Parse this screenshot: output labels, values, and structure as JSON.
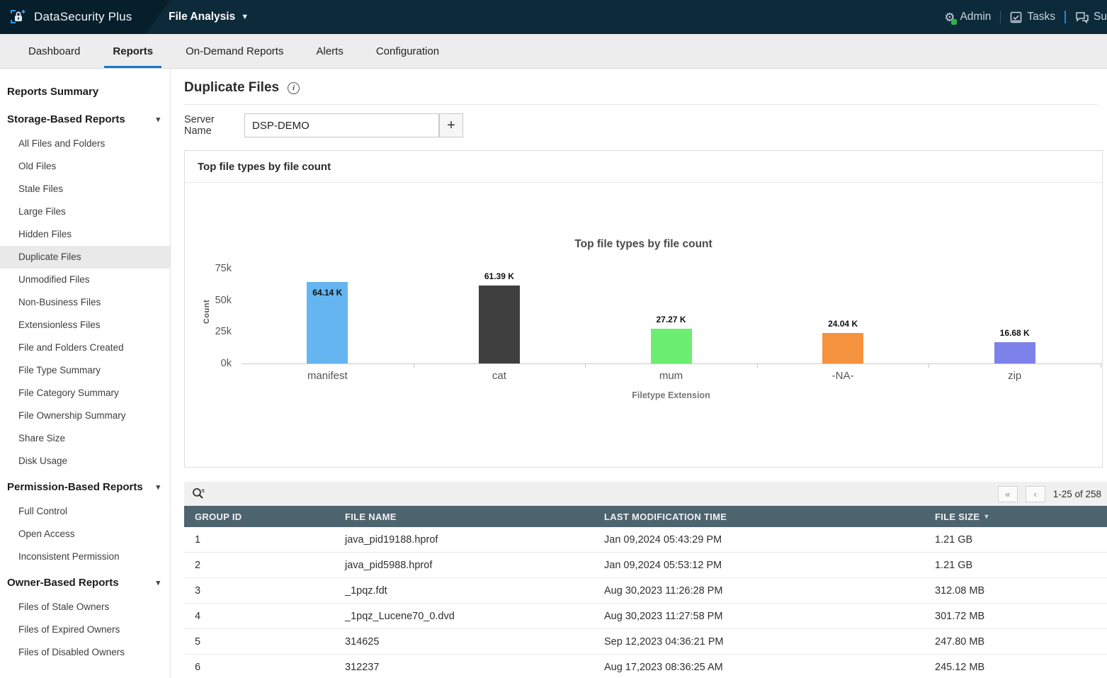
{
  "app": {
    "product_name": "DataSecurity Plus",
    "module_name": "File Analysis",
    "nav_right": {
      "admin": "Admin",
      "tasks": "Tasks",
      "support": "Su"
    }
  },
  "tabs": {
    "active_index": 1,
    "items": [
      {
        "label": "Dashboard"
      },
      {
        "label": "Reports"
      },
      {
        "label": "On-Demand Reports"
      },
      {
        "label": "Alerts"
      },
      {
        "label": "Configuration"
      }
    ]
  },
  "sidebar": {
    "summary_link": "Reports Summary",
    "sections": [
      {
        "title": "Storage-Based Reports",
        "selected": "Duplicate Files",
        "items": [
          "All Files and Folders",
          "Old Files",
          "Stale Files",
          "Large Files",
          "Hidden Files",
          "Duplicate Files",
          "Unmodified Files",
          "Non-Business Files",
          "Extensionless Files",
          "File and Folders Created",
          "File Type Summary",
          "File Category Summary",
          "File Ownership Summary",
          "Share Size",
          "Disk Usage"
        ]
      },
      {
        "title": "Permission-Based Reports",
        "selected": "",
        "items": [
          "Full Control",
          "Open Access",
          "Inconsistent Permission"
        ]
      },
      {
        "title": "Owner-Based Reports",
        "selected": "",
        "items": [
          "Files of Stale Owners",
          "Files of Expired Owners",
          "Files of Disabled Owners"
        ]
      }
    ]
  },
  "page": {
    "title": "Duplicate Files",
    "server_label": "Server Name",
    "server_value": "DSP-DEMO",
    "add_button": "+"
  },
  "chart_card": {
    "header": "Top file types by file count"
  },
  "chart_data": {
    "type": "bar",
    "title": "Top file types by file count",
    "categories": [
      "manifest",
      "cat",
      "mum",
      "-NA-",
      "zip"
    ],
    "values": [
      64140,
      61390,
      27270,
      24040,
      16680
    ],
    "value_labels": [
      "64.14 K",
      "61.39 K",
      "27.27 K",
      "24.04 K",
      "16.68 K"
    ],
    "label_placement": [
      "inside",
      "above",
      "above",
      "above",
      "above"
    ],
    "bar_colors": [
      "#64b5f0",
      "#3f3f3f",
      "#6cee70",
      "#f5923e",
      "#7d82ea"
    ],
    "xlabel": "Filetype Extension",
    "ylabel": "Count",
    "ylim": [
      0,
      75000
    ],
    "yticks": [
      0,
      25000,
      50000,
      75000
    ],
    "ytick_labels": [
      "0k",
      "25k",
      "50k",
      "75k"
    ],
    "grid": false,
    "legend": false
  },
  "table": {
    "pagination": {
      "prev_all": "«",
      "prev": "‹",
      "range_text": "1-25 of 258"
    },
    "columns": [
      "GROUP ID",
      "FILE NAME",
      "LAST MODIFICATION TIME",
      "FILE SIZE"
    ],
    "sorted_column": "FILE SIZE",
    "rows": [
      [
        "1",
        "java_pid19188.hprof",
        "Jan 09,2024 05:43:29 PM",
        "1.21 GB"
      ],
      [
        "2",
        "java_pid5988.hprof",
        "Jan 09,2024 05:53:12 PM",
        "1.21 GB"
      ],
      [
        "3",
        "_1pqz.fdt",
        "Aug 30,2023 11:26:28 PM",
        "312.08 MB"
      ],
      [
        "4",
        "_1pqz_Lucene70_0.dvd",
        "Aug 30,2023 11:27:58 PM",
        "301.72 MB"
      ],
      [
        "5",
        "314625",
        "Sep 12,2023 04:36:21 PM",
        "247.80 MB"
      ],
      [
        "6",
        "312237",
        "Aug 17,2023 08:36:25 AM",
        "245.12 MB"
      ]
    ]
  }
}
